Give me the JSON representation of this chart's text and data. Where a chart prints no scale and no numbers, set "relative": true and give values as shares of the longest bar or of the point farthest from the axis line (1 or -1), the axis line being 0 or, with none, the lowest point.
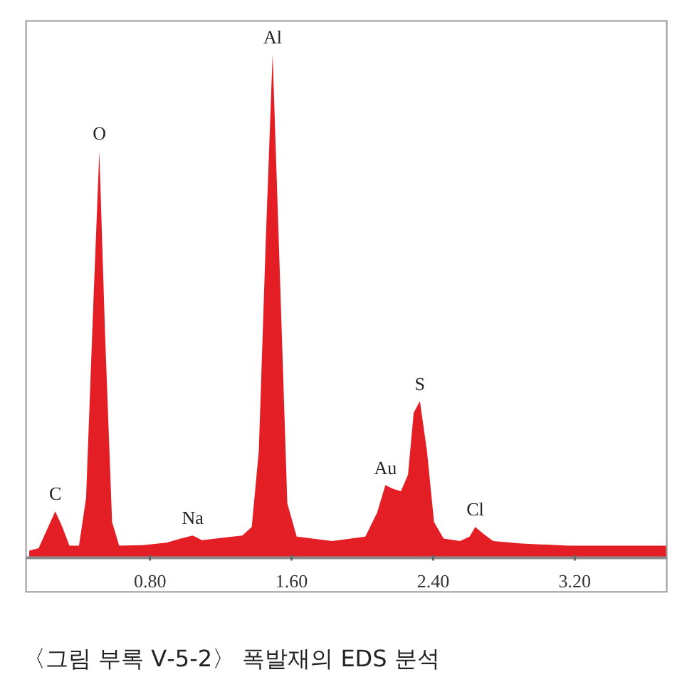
{
  "chart_data": {
    "type": "area",
    "relative": true,
    "x": [
      0.118,
      0.171,
      0.225,
      0.265,
      0.305,
      0.345,
      0.399,
      0.439,
      0.479,
      0.514,
      0.546,
      0.586,
      0.626,
      0.76,
      0.894,
      0.974,
      1.041,
      1.094,
      1.215,
      1.322,
      1.375,
      1.415,
      1.455,
      1.493,
      1.536,
      1.576,
      1.629,
      1.83,
      2.017,
      2.084,
      2.13,
      2.172,
      2.218,
      2.258,
      2.29,
      2.325,
      2.365,
      2.405,
      2.459,
      2.552,
      2.606,
      2.638,
      2.686,
      2.739,
      2.9,
      3.167,
      3.435,
      3.716
    ],
    "series": [
      {
        "color": "#e31e24",
        "values": [
          0.014,
          0.019,
          0.061,
          0.092,
          0.061,
          0.024,
          0.024,
          0.118,
          0.495,
          0.808,
          0.448,
          0.071,
          0.024,
          0.025,
          0.03,
          0.038,
          0.044,
          0.035,
          0.04,
          0.044,
          0.061,
          0.212,
          0.637,
          1,
          0.542,
          0.108,
          0.042,
          0.033,
          0.042,
          0.09,
          0.144,
          0.137,
          0.132,
          0.165,
          0.288,
          0.311,
          0.212,
          0.071,
          0.038,
          0.033,
          0.042,
          0.061,
          0.047,
          0.033,
          0.028,
          0.024,
          0.024,
          0.024
        ]
      }
    ],
    "xlim": [
      0.1,
      3.72
    ],
    "xticks": [
      {
        "value": 0.8,
        "label": "0.80"
      },
      {
        "value": 1.6,
        "label": "1.60"
      },
      {
        "value": 2.4,
        "label": "2.40"
      },
      {
        "value": 3.2,
        "label": "3.20"
      }
    ],
    "annotations": [
      {
        "text": "C",
        "x": 0.265,
        "y": 0.092
      },
      {
        "text": "O",
        "x": 0.514,
        "y": 0.808
      },
      {
        "text": "Na",
        "x": 1.041,
        "y": 0.044
      },
      {
        "text": "Al",
        "x": 1.493,
        "y": 1
      },
      {
        "text": "Au",
        "x": 2.13,
        "y": 0.144
      },
      {
        "text": "S",
        "x": 2.325,
        "y": 0.311
      },
      {
        "text": "Cl",
        "x": 2.638,
        "y": 0.061
      },
      "〈그림 부록 Ⅴ-5-2〉 폭발재의 EDS 분석"
    ]
  }
}
